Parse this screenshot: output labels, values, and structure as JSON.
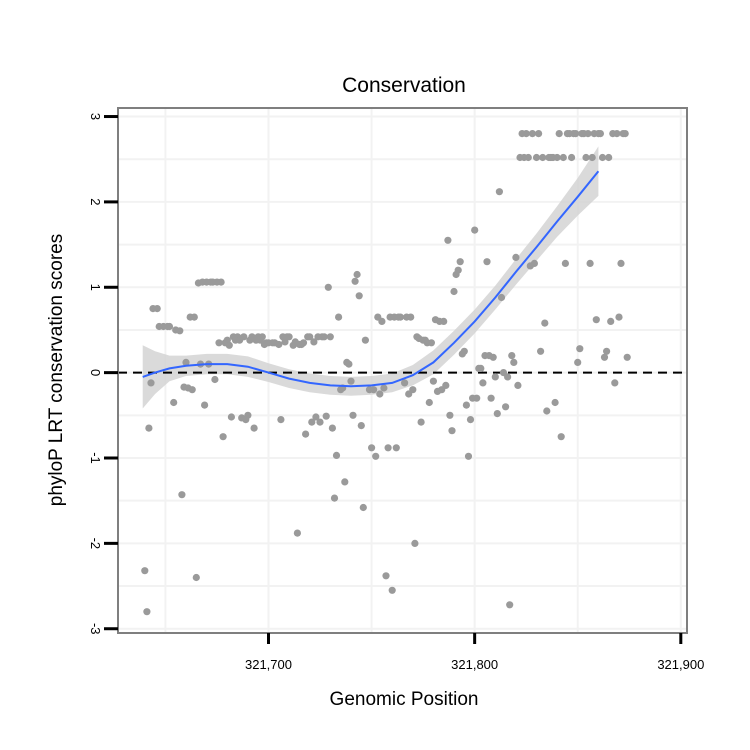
{
  "chart_data": {
    "type": "scatter",
    "title": "Conservation",
    "xlabel": "Genomic Position",
    "ylabel": "phyloP LRT conservation scores",
    "xlim": [
      321627,
      321903
    ],
    "ylim": [
      -3.05,
      3.1
    ],
    "x_ticks": [
      {
        "value": 321700,
        "label": "321,700"
      },
      {
        "value": 321800,
        "label": "321,800"
      },
      {
        "value": 321900,
        "label": "321,900"
      }
    ],
    "y_ticks": [
      {
        "value": -3,
        "label": "-3"
      },
      {
        "value": -2,
        "label": "-2"
      },
      {
        "value": -1,
        "label": "-1"
      },
      {
        "value": 0,
        "label": "0"
      },
      {
        "value": 1,
        "label": "1"
      },
      {
        "value": 2,
        "label": "2"
      },
      {
        "value": 3,
        "label": "3"
      }
    ],
    "grid": true,
    "reference_line": {
      "y": 0,
      "style": "dashed",
      "color": "#000000"
    },
    "colors": {
      "points": "#9a9a9a",
      "smooth": "#3366ff",
      "band": "#d3d3d3",
      "panel_border": "#7f7f7f",
      "grid": "#f2f2f2"
    },
    "points": [
      [
        321640,
        -2.32
      ],
      [
        321641,
        -2.8
      ],
      [
        321642,
        -0.65
      ],
      [
        321643,
        -0.12
      ],
      [
        321644,
        0.75
      ],
      [
        321646,
        0.75
      ],
      [
        321647,
        0.54
      ],
      [
        321649,
        0.54
      ],
      [
        321651,
        0.54
      ],
      [
        321652,
        0.54
      ],
      [
        321654,
        -0.35
      ],
      [
        321655,
        0.5
      ],
      [
        321657,
        0.49
      ],
      [
        321658,
        -1.43
      ],
      [
        321659,
        -0.17
      ],
      [
        321660,
        0.12
      ],
      [
        321661,
        -0.18
      ],
      [
        321662,
        0.65
      ],
      [
        321663,
        -0.2
      ],
      [
        321664,
        0.65
      ],
      [
        321665,
        -2.4
      ],
      [
        321666,
        1.05
      ],
      [
        321667,
        0.1
      ],
      [
        321668,
        1.06
      ],
      [
        321669,
        -0.38
      ],
      [
        321670,
        1.06
      ],
      [
        321671,
        0.1
      ],
      [
        321672,
        1.06
      ],
      [
        321673,
        1.06
      ],
      [
        321674,
        -0.08
      ],
      [
        321675,
        1.06
      ],
      [
        321676,
        0.35
      ],
      [
        321677,
        1.06
      ],
      [
        321678,
        -0.75
      ],
      [
        321679,
        0.35
      ],
      [
        321680,
        0.38
      ],
      [
        321681,
        0.32
      ],
      [
        321682,
        -0.52
      ],
      [
        321683,
        0.42
      ],
      [
        321684,
        0.38
      ],
      [
        321685,
        0.42
      ],
      [
        321686,
        0.38
      ],
      [
        321687,
        -0.53
      ],
      [
        321688,
        0.42
      ],
      [
        321689,
        -0.55
      ],
      [
        321690,
        -0.5
      ],
      [
        321691,
        0.38
      ],
      [
        321692,
        0.42
      ],
      [
        321693,
        -0.65
      ],
      [
        321694,
        0.38
      ],
      [
        321695,
        0.42
      ],
      [
        321696,
        0.38
      ],
      [
        321697,
        0.42
      ],
      [
        321698,
        0.33
      ],
      [
        321699,
        0.35
      ],
      [
        321700,
        0.35
      ],
      [
        321702,
        0.35
      ],
      [
        321703,
        0.35
      ],
      [
        321705,
        0.33
      ],
      [
        321706,
        -0.55
      ],
      [
        321707,
        0.42
      ],
      [
        321708,
        0.36
      ],
      [
        321709,
        0.42
      ],
      [
        321710,
        0.42
      ],
      [
        321712,
        0.32
      ],
      [
        321713,
        0.36
      ],
      [
        321714,
        -1.88
      ],
      [
        321715,
        0.33
      ],
      [
        321716,
        0.33
      ],
      [
        321717,
        0.35
      ],
      [
        321718,
        -0.72
      ],
      [
        321719,
        0.42
      ],
      [
        321720,
        0.42
      ],
      [
        321721,
        -0.58
      ],
      [
        321722,
        0.36
      ],
      [
        321723,
        -0.52
      ],
      [
        321724,
        0.42
      ],
      [
        321725,
        -0.58
      ],
      [
        321726,
        0.42
      ],
      [
        321727,
        0.42
      ],
      [
        321728,
        -0.51
      ],
      [
        321729,
        1.0
      ],
      [
        321730,
        0.42
      ],
      [
        321731,
        -0.65
      ],
      [
        321732,
        -1.47
      ],
      [
        321733,
        -0.97
      ],
      [
        321734,
        0.65
      ],
      [
        321735,
        -0.2
      ],
      [
        321736,
        -0.18
      ],
      [
        321737,
        -1.28
      ],
      [
        321738,
        0.12
      ],
      [
        321739,
        0.1
      ],
      [
        321740,
        -0.1
      ],
      [
        321741,
        -0.5
      ],
      [
        321742,
        1.07
      ],
      [
        321743,
        1.15
      ],
      [
        321744,
        0.9
      ],
      [
        321745,
        -0.62
      ],
      [
        321746,
        -1.58
      ],
      [
        321747,
        0.38
      ],
      [
        321749,
        -0.2
      ],
      [
        321750,
        -0.88
      ],
      [
        321751,
        -0.2
      ],
      [
        321752,
        -0.98
      ],
      [
        321753,
        0.65
      ],
      [
        321754,
        -0.25
      ],
      [
        321755,
        0.6
      ],
      [
        321756,
        -0.18
      ],
      [
        321757,
        -2.38
      ],
      [
        321758,
        -0.88
      ],
      [
        321759,
        0.65
      ],
      [
        321760,
        -2.55
      ],
      [
        321761,
        0.65
      ],
      [
        321762,
        -0.88
      ],
      [
        321763,
        0.65
      ],
      [
        321764,
        0.65
      ],
      [
        321766,
        -0.12
      ],
      [
        321767,
        0.65
      ],
      [
        321768,
        -0.25
      ],
      [
        321769,
        0.65
      ],
      [
        321770,
        -0.2
      ],
      [
        321771,
        -2.0
      ],
      [
        321772,
        0.42
      ],
      [
        321773,
        0.4
      ],
      [
        321774,
        -0.58
      ],
      [
        321775,
        0.38
      ],
      [
        321776,
        0.38
      ],
      [
        321777,
        0.35
      ],
      [
        321778,
        -0.35
      ],
      [
        321779,
        0.35
      ],
      [
        321780,
        -0.1
      ],
      [
        321781,
        0.62
      ],
      [
        321782,
        -0.22
      ],
      [
        321783,
        0.6
      ],
      [
        321784,
        -0.2
      ],
      [
        321785,
        0.6
      ],
      [
        321786,
        -0.15
      ],
      [
        321787,
        1.55
      ],
      [
        321788,
        -0.5
      ],
      [
        321789,
        -0.68
      ],
      [
        321790,
        0.95
      ],
      [
        321791,
        1.15
      ],
      [
        321792,
        1.2
      ],
      [
        321793,
        1.3
      ],
      [
        321794,
        0.22
      ],
      [
        321795,
        0.25
      ],
      [
        321796,
        -0.38
      ],
      [
        321797,
        -0.98
      ],
      [
        321798,
        -0.55
      ],
      [
        321799,
        -0.3
      ],
      [
        321800,
        1.67
      ],
      [
        321801,
        -0.3
      ],
      [
        321802,
        0.05
      ],
      [
        321803,
        0.05
      ],
      [
        321804,
        -0.12
      ],
      [
        321805,
        0.2
      ],
      [
        321806,
        1.3
      ],
      [
        321807,
        0.2
      ],
      [
        321808,
        -0.3
      ],
      [
        321809,
        0.18
      ],
      [
        321810,
        -0.05
      ],
      [
        321811,
        -0.48
      ],
      [
        321812,
        2.12
      ],
      [
        321813,
        0.88
      ],
      [
        321814,
        0.0
      ],
      [
        321815,
        -0.4
      ],
      [
        321816,
        -0.05
      ],
      [
        321817,
        -2.72
      ],
      [
        321818,
        0.2
      ],
      [
        321819,
        0.12
      ],
      [
        321820,
        1.35
      ],
      [
        321821,
        -0.15
      ],
      [
        321822,
        2.52
      ],
      [
        321823,
        2.8
      ],
      [
        321824,
        2.52
      ],
      [
        321825,
        2.8
      ],
      [
        321826,
        2.52
      ],
      [
        321827,
        1.25
      ],
      [
        321828,
        2.8
      ],
      [
        321829,
        1.28
      ],
      [
        321830,
        2.52
      ],
      [
        321831,
        2.8
      ],
      [
        321832,
        0.25
      ],
      [
        321833,
        2.52
      ],
      [
        321834,
        0.58
      ],
      [
        321835,
        -0.45
      ],
      [
        321836,
        2.52
      ],
      [
        321837,
        2.52
      ],
      [
        321838,
        2.52
      ],
      [
        321839,
        -0.35
      ],
      [
        321840,
        2.52
      ],
      [
        321841,
        2.8
      ],
      [
        321842,
        -0.75
      ],
      [
        321843,
        2.52
      ],
      [
        321844,
        1.28
      ],
      [
        321845,
        2.8
      ],
      [
        321846,
        2.8
      ],
      [
        321847,
        2.52
      ],
      [
        321848,
        2.8
      ],
      [
        321849,
        2.8
      ],
      [
        321850,
        0.12
      ],
      [
        321851,
        0.28
      ],
      [
        321852,
        2.8
      ],
      [
        321853,
        2.8
      ],
      [
        321854,
        2.52
      ],
      [
        321855,
        2.8
      ],
      [
        321856,
        1.28
      ],
      [
        321857,
        2.52
      ],
      [
        321858,
        2.8
      ],
      [
        321859,
        0.62
      ],
      [
        321860,
        2.8
      ],
      [
        321861,
        2.8
      ],
      [
        321862,
        2.52
      ],
      [
        321863,
        0.18
      ],
      [
        321864,
        0.25
      ],
      [
        321865,
        2.52
      ],
      [
        321866,
        0.6
      ],
      [
        321867,
        2.8
      ],
      [
        321868,
        -0.12
      ],
      [
        321869,
        2.8
      ],
      [
        321870,
        0.65
      ],
      [
        321871,
        1.28
      ],
      [
        321872,
        2.8
      ],
      [
        321873,
        2.8
      ],
      [
        321874,
        0.18
      ]
    ],
    "smooth": [
      [
        321639,
        -0.05,
        0.32,
        -0.42
      ],
      [
        321645,
        0.0,
        0.25,
        -0.25
      ],
      [
        321652,
        0.05,
        0.2,
        -0.1
      ],
      [
        321660,
        0.08,
        0.2,
        -0.04
      ],
      [
        321670,
        0.1,
        0.22,
        -0.02
      ],
      [
        321680,
        0.1,
        0.22,
        -0.02
      ],
      [
        321690,
        0.07,
        0.19,
        -0.05
      ],
      [
        321700,
        0.0,
        0.11,
        -0.11
      ],
      [
        321710,
        -0.07,
        0.04,
        -0.18
      ],
      [
        321720,
        -0.12,
        -0.01,
        -0.23
      ],
      [
        321730,
        -0.15,
        -0.04,
        -0.26
      ],
      [
        321740,
        -0.16,
        -0.05,
        -0.27
      ],
      [
        321750,
        -0.15,
        -0.04,
        -0.26
      ],
      [
        321760,
        -0.12,
        -0.01,
        -0.23
      ],
      [
        321770,
        -0.03,
        0.09,
        -0.15
      ],
      [
        321780,
        0.12,
        0.26,
        -0.02
      ],
      [
        321790,
        0.35,
        0.49,
        0.21
      ],
      [
        321800,
        0.6,
        0.74,
        0.46
      ],
      [
        321810,
        0.88,
        1.02,
        0.74
      ],
      [
        321820,
        1.18,
        1.33,
        1.03
      ],
      [
        321830,
        1.47,
        1.63,
        1.31
      ],
      [
        321840,
        1.77,
        1.95,
        1.59
      ],
      [
        321850,
        2.06,
        2.28,
        1.84
      ],
      [
        321860,
        2.36,
        2.65,
        2.07
      ]
    ]
  }
}
